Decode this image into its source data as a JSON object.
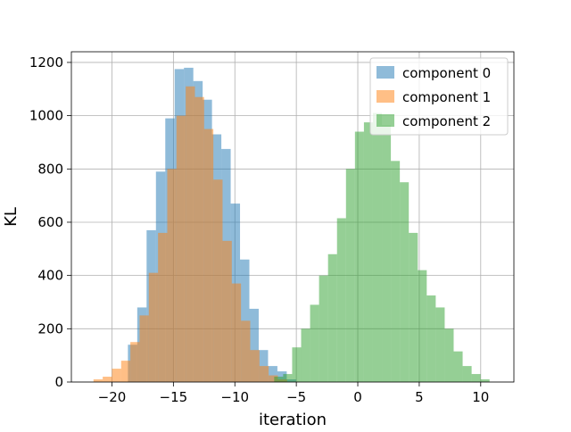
{
  "chart_data": {
    "type": "histogram",
    "xlabel": "iteration",
    "ylabel": "KL",
    "xlim": [
      -23.3,
      12.7
    ],
    "ylim": [
      0,
      1240
    ],
    "xticks": [
      -20,
      -15,
      -10,
      -5,
      0,
      5,
      10
    ],
    "xtick_labels": [
      "−20",
      "−15",
      "−10",
      "−5",
      "0",
      "5",
      "10"
    ],
    "yticks": [
      0,
      200,
      400,
      600,
      800,
      1000,
      1200
    ],
    "ytick_labels": [
      "0",
      "200",
      "400",
      "600",
      "800",
      "1000",
      "1200"
    ],
    "grid": true,
    "legend_position": "top-right",
    "series": [
      {
        "name": "component 0",
        "color": "#1f77b4",
        "opacity": 0.5,
        "bin_edges": [
          -18.7,
          -17.94,
          -17.18,
          -16.42,
          -15.66,
          -14.9,
          -14.14,
          -13.38,
          -12.62,
          -11.86,
          -11.1,
          -10.34,
          -9.58,
          -8.82,
          -8.06,
          -7.3,
          -6.54,
          -5.78,
          -5.02
        ],
        "counts": [
          140,
          280,
          570,
          790,
          990,
          1175,
          1180,
          1130,
          1060,
          930,
          875,
          670,
          460,
          275,
          120,
          60,
          40,
          10
        ]
      },
      {
        "name": "component 1",
        "color": "#ff7f0e",
        "opacity": 0.5,
        "bin_edges": [
          -21.5,
          -20.75,
          -20.0,
          -19.25,
          -18.5,
          -17.75,
          -17.0,
          -16.25,
          -15.5,
          -14.75,
          -14.0,
          -13.25,
          -12.5,
          -11.75,
          -11.0,
          -10.25,
          -9.5,
          -8.75,
          -8.0,
          -7.25,
          -6.5,
          -5.75
        ],
        "counts": [
          10,
          20,
          50,
          80,
          150,
          250,
          410,
          560,
          800,
          1000,
          1110,
          1070,
          950,
          760,
          530,
          370,
          230,
          120,
          60,
          25,
          10
        ]
      },
      {
        "name": "component 2",
        "color": "#2ca02c",
        "opacity": 0.5,
        "bin_edges": [
          -6.8,
          -6.07,
          -5.34,
          -4.61,
          -3.88,
          -3.15,
          -2.42,
          -1.69,
          -0.96,
          -0.23,
          0.5,
          1.23,
          1.96,
          2.69,
          3.42,
          4.15,
          4.88,
          5.61,
          6.34,
          7.07,
          7.8,
          8.53,
          9.26,
          9.99,
          10.72
        ],
        "counts": [
          20,
          30,
          130,
          200,
          290,
          400,
          480,
          615,
          800,
          940,
          975,
          1010,
          965,
          830,
          750,
          560,
          420,
          325,
          280,
          200,
          115,
          60,
          30,
          10
        ]
      }
    ]
  }
}
